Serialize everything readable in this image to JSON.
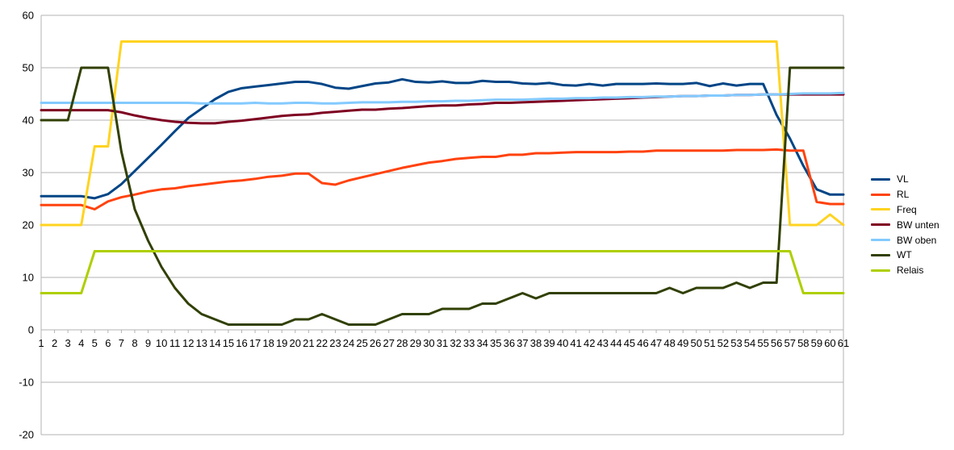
{
  "chart_data": {
    "type": "line",
    "title": "",
    "xlabel": "",
    "ylabel": "",
    "ylim": [
      -20,
      60
    ],
    "yticks": [
      -20,
      -10,
      0,
      10,
      20,
      30,
      40,
      50,
      60
    ],
    "grid": true,
    "legend_position": "right",
    "x": [
      1,
      2,
      3,
      4,
      5,
      6,
      7,
      8,
      9,
      10,
      11,
      12,
      13,
      14,
      15,
      16,
      17,
      18,
      19,
      20,
      21,
      22,
      23,
      24,
      25,
      26,
      27,
      28,
      29,
      30,
      31,
      32,
      33,
      34,
      35,
      36,
      37,
      38,
      39,
      40,
      41,
      42,
      43,
      44,
      45,
      46,
      47,
      48,
      49,
      50,
      51,
      52,
      53,
      54,
      55,
      56,
      57,
      58,
      59,
      60,
      61
    ],
    "series": [
      {
        "name": "VL",
        "color": "#004586",
        "values": [
          25.5,
          25.5,
          25.5,
          25.5,
          25.1,
          25.9,
          27.8,
          30.3,
          32.8,
          35.3,
          37.9,
          40.4,
          42.2,
          44.0,
          45.4,
          46.1,
          46.4,
          46.7,
          47.0,
          47.3,
          47.3,
          46.9,
          46.2,
          46.0,
          46.5,
          47.0,
          47.2,
          47.8,
          47.3,
          47.2,
          47.4,
          47.1,
          47.1,
          47.5,
          47.3,
          47.3,
          47.0,
          46.9,
          47.1,
          46.7,
          46.6,
          46.9,
          46.6,
          46.9,
          46.9,
          46.9,
          47.0,
          46.9,
          46.9,
          47.1,
          46.5,
          47.0,
          46.6,
          46.9,
          46.9,
          41.0,
          36.5,
          31.3,
          26.8,
          25.8,
          25.8
        ]
      },
      {
        "name": "RL",
        "color": "#ff420e",
        "values": [
          23.8,
          23.8,
          23.8,
          23.8,
          23.0,
          24.5,
          25.3,
          25.8,
          26.4,
          26.8,
          27.0,
          27.4,
          27.7,
          28.0,
          28.3,
          28.5,
          28.8,
          29.2,
          29.4,
          29.8,
          29.8,
          28.0,
          27.7,
          28.5,
          29.1,
          29.7,
          30.3,
          30.9,
          31.4,
          31.9,
          32.2,
          32.6,
          32.8,
          33.0,
          33.0,
          33.4,
          33.4,
          33.7,
          33.7,
          33.8,
          33.9,
          33.9,
          33.9,
          33.9,
          34.0,
          34.0,
          34.2,
          34.2,
          34.2,
          34.2,
          34.2,
          34.2,
          34.3,
          34.3,
          34.3,
          34.4,
          34.2,
          34.2,
          24.4,
          24.0,
          24.0
        ]
      },
      {
        "name": "Freq",
        "color": "#ffd320",
        "values": [
          20,
          20,
          20,
          20,
          35,
          35,
          55,
          55,
          55,
          55,
          55,
          55,
          55,
          55,
          55,
          55,
          55,
          55,
          55,
          55,
          55,
          55,
          55,
          55,
          55,
          55,
          55,
          55,
          55,
          55,
          55,
          55,
          55,
          55,
          55,
          55,
          55,
          55,
          55,
          55,
          55,
          55,
          55,
          55,
          55,
          55,
          55,
          55,
          55,
          55,
          55,
          55,
          55,
          55,
          55,
          55,
          20,
          20,
          20,
          22,
          20
        ]
      },
      {
        "name": "BW unten",
        "color": "#7e0021",
        "values": [
          41.9,
          41.9,
          41.9,
          41.9,
          41.9,
          41.9,
          41.5,
          40.9,
          40.4,
          40.0,
          39.7,
          39.5,
          39.4,
          39.4,
          39.7,
          39.9,
          40.2,
          40.5,
          40.8,
          41.0,
          41.1,
          41.4,
          41.6,
          41.8,
          42.0,
          42.0,
          42.2,
          42.3,
          42.5,
          42.7,
          42.8,
          42.8,
          43.0,
          43.1,
          43.3,
          43.3,
          43.4,
          43.5,
          43.6,
          43.7,
          43.8,
          43.9,
          44.0,
          44.1,
          44.2,
          44.3,
          44.4,
          44.5,
          44.6,
          44.6,
          44.7,
          44.7,
          44.8,
          44.8,
          44.9,
          44.9,
          44.9,
          44.9,
          44.9,
          44.9,
          44.9
        ]
      },
      {
        "name": "BW oben",
        "color": "#83caff",
        "values": [
          43.3,
          43.3,
          43.3,
          43.3,
          43.3,
          43.3,
          43.3,
          43.3,
          43.3,
          43.3,
          43.3,
          43.3,
          43.2,
          43.2,
          43.2,
          43.2,
          43.3,
          43.2,
          43.2,
          43.3,
          43.3,
          43.2,
          43.2,
          43.3,
          43.4,
          43.4,
          43.4,
          43.5,
          43.5,
          43.6,
          43.6,
          43.7,
          43.7,
          43.8,
          43.9,
          43.9,
          43.9,
          44.0,
          44.1,
          44.1,
          44.2,
          44.2,
          44.3,
          44.3,
          44.4,
          44.4,
          44.5,
          44.5,
          44.6,
          44.6,
          44.7,
          44.7,
          44.8,
          44.8,
          44.9,
          44.9,
          45.0,
          45.1,
          45.1,
          45.1,
          45.2
        ]
      },
      {
        "name": "WT",
        "color": "#314004",
        "values": [
          40,
          40,
          40,
          50,
          50,
          50,
          34,
          23,
          17,
          12,
          8,
          5,
          3,
          2,
          1,
          1,
          1,
          1,
          1,
          2,
          2,
          3,
          2,
          1,
          1,
          1,
          2,
          3,
          3,
          3,
          4,
          4,
          4,
          5,
          5,
          6,
          7,
          6,
          7,
          7,
          7,
          7,
          7,
          7,
          7,
          7,
          7,
          8,
          7,
          8,
          8,
          8,
          9,
          8,
          9,
          9,
          50,
          50,
          50,
          50,
          50
        ]
      },
      {
        "name": "Relais",
        "color": "#aecf00",
        "values": [
          7,
          7,
          7,
          7,
          15,
          15,
          15,
          15,
          15,
          15,
          15,
          15,
          15,
          15,
          15,
          15,
          15,
          15,
          15,
          15,
          15,
          15,
          15,
          15,
          15,
          15,
          15,
          15,
          15,
          15,
          15,
          15,
          15,
          15,
          15,
          15,
          15,
          15,
          15,
          15,
          15,
          15,
          15,
          15,
          15,
          15,
          15,
          15,
          15,
          15,
          15,
          15,
          15,
          15,
          15,
          15,
          15,
          7,
          7,
          7,
          7
        ]
      }
    ]
  },
  "colors": {
    "grid": "#b3b3b3",
    "axis": "#b3b3b3",
    "background": "#ffffff"
  }
}
